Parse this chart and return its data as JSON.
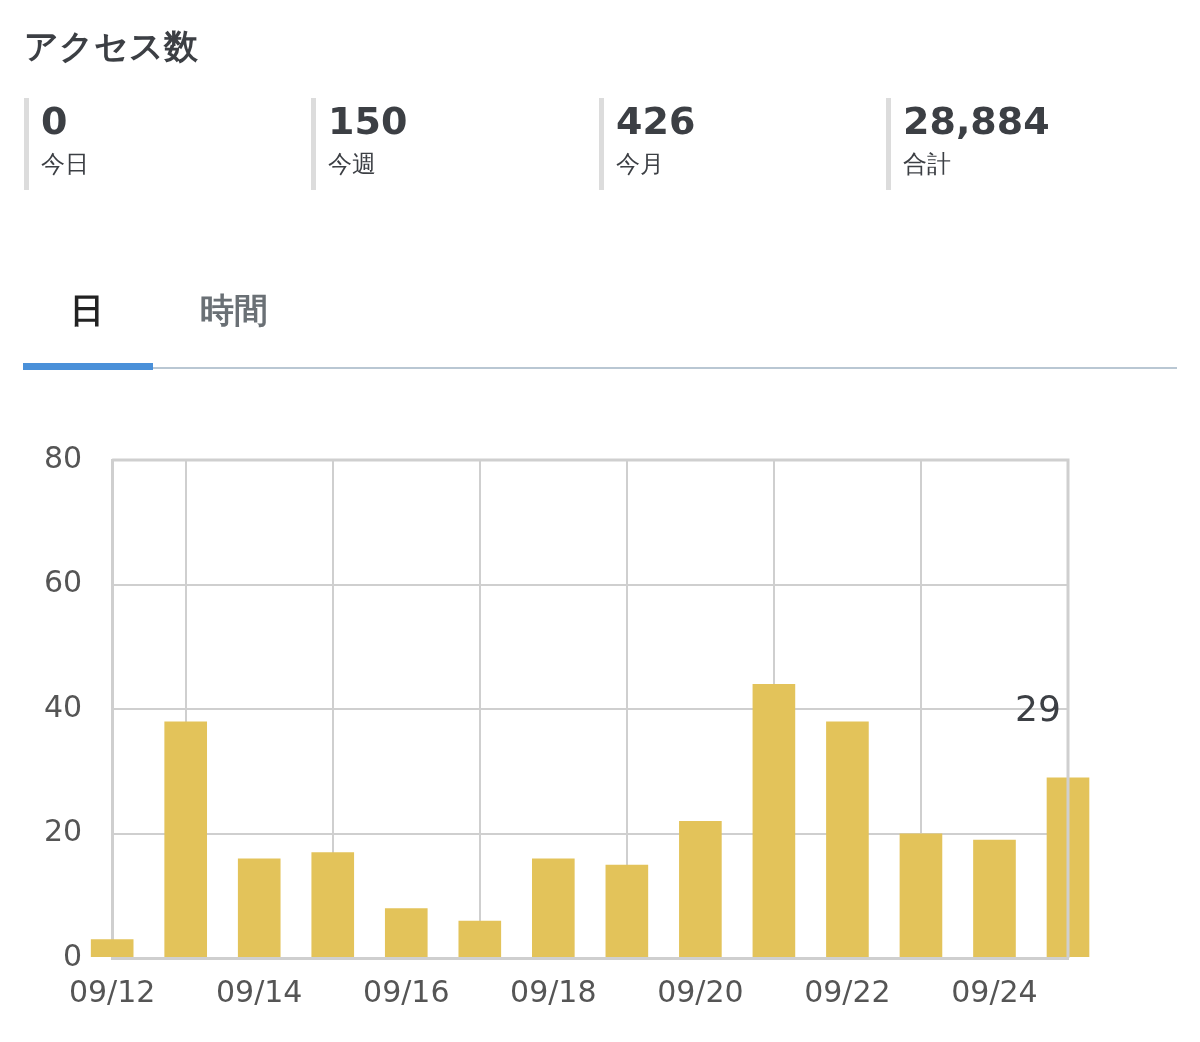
{
  "chart_data": [
    {
      "type": "other",
      "title": "アクセス数",
      "annotations": [
        "0",
        "今日",
        "150",
        "今週",
        "426",
        "今月",
        "28,884",
        "合計",
        "日",
        "時間"
      ]
    },
    {
      "type": "bar",
      "x": [
        "--09-12",
        "--09-13",
        "--09-14",
        "--09-15",
        "--09-16",
        "--09-17",
        "--09-18",
        "--09-19",
        "--09-20",
        "--09-21",
        "--09-22",
        "--09-23",
        "--09-24",
        "--09-25"
      ],
      "values": [
        3,
        38,
        16,
        17,
        8,
        6,
        16,
        15,
        22,
        44,
        38,
        20,
        19,
        29
      ],
      "value_labels": [
        null,
        null,
        null,
        null,
        null,
        null,
        null,
        null,
        null,
        null,
        null,
        null,
        null,
        "29"
      ],
      "color": "#e3c35a",
      "xlim": [
        "--09-12",
        "--09-25"
      ],
      "xticks": [
        {
          "value": "--09-12",
          "label": "09/12"
        },
        {
          "value": "--09-14",
          "label": "09/14"
        },
        {
          "value": "--09-16",
          "label": "09/16"
        },
        {
          "value": "--09-18",
          "label": "09/18"
        },
        {
          "value": "--09-20",
          "label": "09/20"
        },
        {
          "value": "--09-22",
          "label": "09/22"
        },
        {
          "value": "--09-24",
          "label": "09/24"
        }
      ],
      "ylim": [
        0,
        80
      ],
      "yticks": [
        0,
        20,
        40,
        60,
        80
      ],
      "grid": true,
      "legend": false
    }
  ]
}
